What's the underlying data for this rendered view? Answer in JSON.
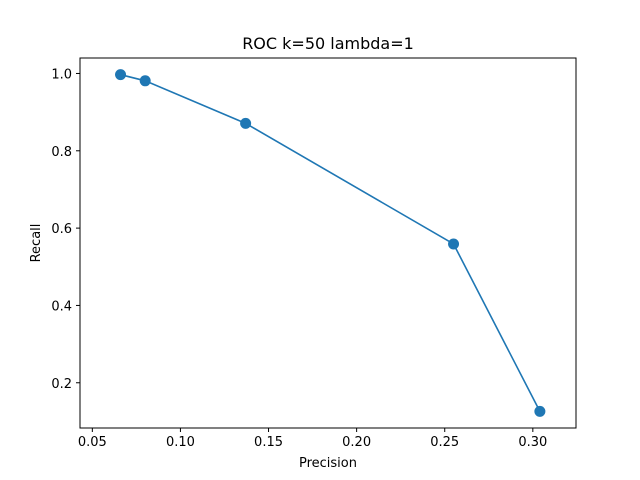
{
  "chart_data": {
    "type": "line",
    "title": "ROC k=50 lambda=1",
    "xlabel": "Precision",
    "ylabel": "Recall",
    "xlim": [
      0.043,
      0.3245
    ],
    "ylim": [
      0.083,
      1.04
    ],
    "xticks": [
      0.05,
      0.1,
      0.15,
      0.2,
      0.25,
      0.3
    ],
    "xtick_labels": [
      "0.05",
      "0.10",
      "0.15",
      "0.20",
      "0.25",
      "0.30"
    ],
    "yticks": [
      0.2,
      0.4,
      0.6,
      0.8,
      1.0
    ],
    "ytick_labels": [
      "0.2",
      "0.4",
      "0.6",
      "0.8",
      "1.0"
    ],
    "grid": false,
    "series": [
      {
        "color": "#1f77b4",
        "marker": "circle",
        "x": [
          0.066,
          0.08,
          0.137,
          0.255,
          0.304
        ],
        "y": [
          0.997,
          0.981,
          0.871,
          0.559,
          0.126
        ]
      }
    ]
  }
}
